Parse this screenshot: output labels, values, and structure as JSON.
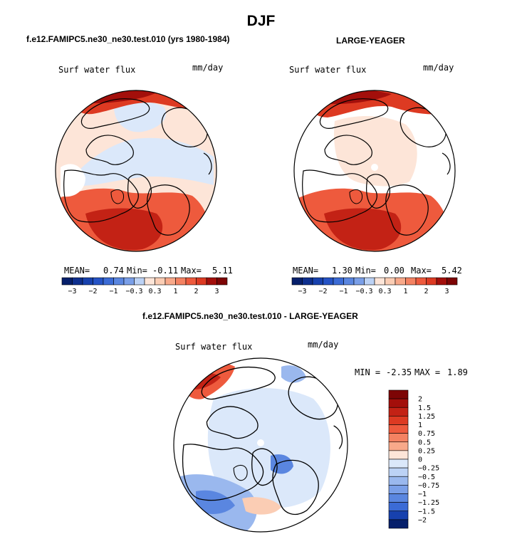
{
  "main_title": "DJF",
  "colors": {
    "land_outline": "#000000",
    "pos_scale": [
      "#fde5d8",
      "#fbcdb4",
      "#f8a98a",
      "#f48262",
      "#ee5a3d",
      "#dd3a22",
      "#c32215",
      "#a30f0b",
      "#7d0505"
    ],
    "neg_scale": [
      "#dbe8fa",
      "#bcd2f5",
      "#9ab8ee",
      "#7a9fe8",
      "#5a86e0",
      "#3b6bd6",
      "#2553c6",
      "#1741ae",
      "#0e2f8e",
      "#061f6b"
    ]
  },
  "chart_data": [
    {
      "type": "heatmap",
      "title": "f.e12.FAMIPC5.ne30_ne30.test.010 (yrs 1980-1984)",
      "variable": "Surf water flux",
      "units": "mm/day",
      "projection": "north polar stereographic",
      "stats": {
        "mean_label": "MEAN=",
        "mean": "0.74",
        "min_label": "Min=",
        "min": "-0.11",
        "max_label": "Max=",
        "max": "5.11"
      },
      "colorbar": {
        "ticks": [
          "-3",
          "-2",
          "-1",
          "-0.3",
          "0.3",
          "1",
          "2",
          "3"
        ]
      }
    },
    {
      "type": "heatmap",
      "title": "LARGE-YEAGER",
      "variable": "Surf water flux",
      "units": "mm/day",
      "projection": "north polar stereographic",
      "stats": {
        "mean_label": "MEAN=",
        "mean": "1.30",
        "min_label": "Min=",
        "min": "0.00",
        "max_label": "Max=",
        "max": "5.42"
      },
      "colorbar": {
        "ticks": [
          "-3",
          "-2",
          "-1",
          "-0.3",
          "0.3",
          "1",
          "2",
          "3"
        ]
      }
    },
    {
      "type": "heatmap",
      "title": "f.e12.FAMIPC5.ne30_ne30.test.010 - LARGE-YEAGER",
      "variable": "Surf water flux",
      "units": "mm/day",
      "projection": "north polar stereographic",
      "stats": {
        "min_label": "MIN =",
        "min": "-2.35",
        "max_label": "MAX =",
        "max": "1.89"
      },
      "colorbar": {
        "levels": [
          "2",
          "1.5",
          "1.25",
          "1",
          "0.75",
          "0.5",
          "0.25",
          "0",
          "-0.25",
          "-0.5",
          "-0.75",
          "-1",
          "-1.25",
          "-1.5",
          "-2"
        ]
      }
    }
  ]
}
